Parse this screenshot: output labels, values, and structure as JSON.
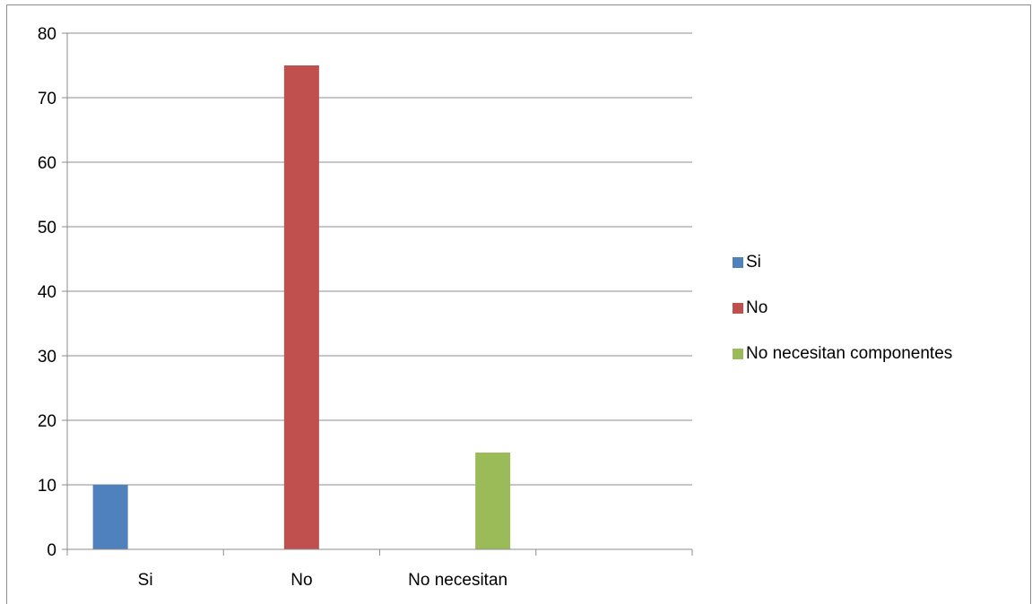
{
  "chart_data": {
    "type": "bar",
    "categories": [
      "Si",
      "No",
      "No necesitan",
      ""
    ],
    "series": [
      {
        "name": "Si",
        "color": "#4f81bd",
        "values": [
          10,
          null,
          null,
          null
        ]
      },
      {
        "name": "No",
        "color": "#c0504d",
        "values": [
          null,
          75,
          null,
          null
        ]
      },
      {
        "name": "No necesitan componentes",
        "color": "#9bbb59",
        "values": [
          null,
          null,
          15,
          null
        ]
      }
    ],
    "ylim": [
      0,
      80
    ],
    "yticks": [
      "0",
      "10",
      "20",
      "30",
      "40",
      "50",
      "60",
      "70",
      "80"
    ],
    "grid": true,
    "legend_position": "right"
  }
}
